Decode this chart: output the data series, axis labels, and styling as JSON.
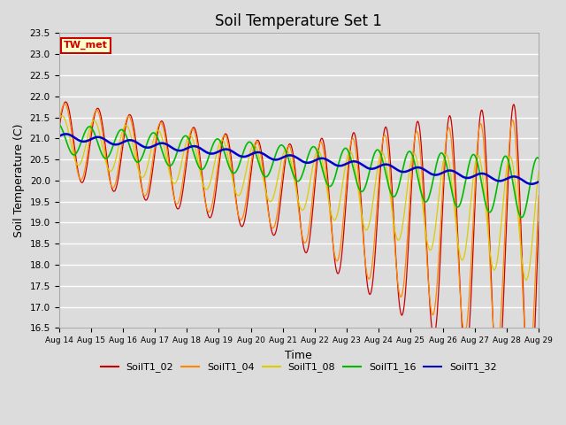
{
  "title": "Soil Temperature Set 1",
  "xlabel": "Time",
  "ylabel": "Soil Temperature (C)",
  "ylim": [
    16.5,
    23.5
  ],
  "yticks": [
    16.5,
    17.0,
    17.5,
    18.0,
    18.5,
    19.0,
    19.5,
    20.0,
    20.5,
    21.0,
    21.5,
    22.0,
    22.5,
    23.0,
    23.5
  ],
  "xtick_labels": [
    "Aug 14",
    "Aug 15",
    "Aug 16",
    "Aug 17",
    "Aug 18",
    "Aug 19",
    "Aug 20",
    "Aug 21",
    "Aug 22",
    "Aug 23",
    "Aug 24",
    "Aug 25",
    "Aug 26",
    "Aug 27",
    "Aug 28",
    "Aug 29"
  ],
  "colors": {
    "SoilT1_02": "#cc0000",
    "SoilT1_04": "#ff8800",
    "SoilT1_08": "#ddcc00",
    "SoilT1_16": "#00bb00",
    "SoilT1_32": "#0000cc"
  },
  "background_color": "#dcdcdc",
  "plot_bg_color": "#dcdcdc",
  "annotation_text": "TW_met",
  "annotation_bg": "#ffffcc",
  "annotation_border": "#cc0000",
  "n_points": 720
}
